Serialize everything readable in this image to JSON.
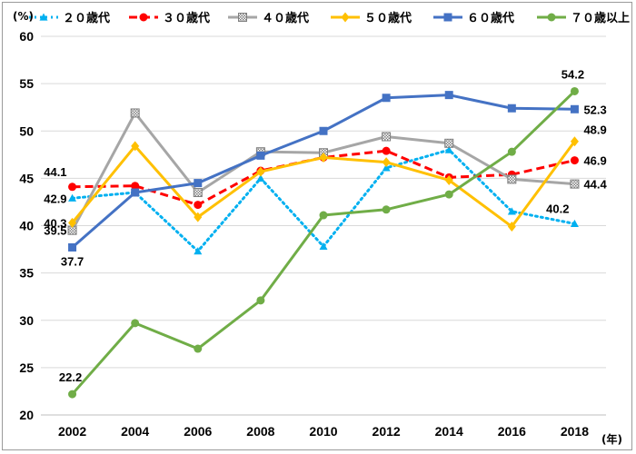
{
  "chart_data": {
    "type": "line",
    "title": "",
    "ylabel_unit": "(%)",
    "xlabel_unit": "(年)",
    "x": [
      "2002",
      "2004",
      "2006",
      "2008",
      "2010",
      "2012",
      "2014",
      "2016",
      "2018"
    ],
    "ylim": [
      20,
      60
    ],
    "yticks": [
      "20",
      "25",
      "30",
      "35",
      "40",
      "45",
      "50",
      "55",
      "60"
    ],
    "grid": "horizontal",
    "legend": "top",
    "series": [
      {
        "name": "２０歳代",
        "color": "#00b0f0",
        "line": "dotted",
        "marker": "triangle",
        "values": [
          42.9,
          43.5,
          37.3,
          45.0,
          37.8,
          46.1,
          48.0,
          41.5,
          40.2
        ]
      },
      {
        "name": "３０歳代",
        "color": "#ff0000",
        "line": "dashed",
        "marker": "circle",
        "values": [
          44.1,
          44.2,
          42.2,
          45.8,
          47.2,
          47.9,
          45.1,
          45.4,
          46.9
        ]
      },
      {
        "name": "４０歳代",
        "color": "#a6a6a6",
        "line": "solid",
        "marker": "checkered-square",
        "values": [
          39.5,
          51.9,
          43.5,
          47.8,
          47.7,
          49.4,
          48.7,
          44.9,
          44.4
        ]
      },
      {
        "name": "５０歳代",
        "color": "#ffc000",
        "line": "solid",
        "marker": "diamond",
        "values": [
          40.3,
          48.4,
          40.9,
          45.7,
          47.2,
          46.7,
          44.8,
          39.9,
          48.9
        ]
      },
      {
        "name": "６０歳代",
        "color": "#4472c4",
        "line": "solid",
        "marker": "square",
        "values": [
          37.7,
          43.5,
          44.5,
          47.4,
          50.0,
          53.5,
          53.8,
          52.4,
          52.3
        ]
      },
      {
        "name": "７０歳以上",
        "color": "#70ad47",
        "line": "solid",
        "marker": "circle",
        "values": [
          22.2,
          29.7,
          27.0,
          32.1,
          41.1,
          41.7,
          43.3,
          47.8,
          54.2
        ]
      }
    ],
    "data_labels": [
      {
        "text": "44.1",
        "series": 1,
        "index": 0,
        "pos": "upper-left"
      },
      {
        "text": "42.9",
        "series": 0,
        "index": 0,
        "pos": "left"
      },
      {
        "text": "40.3",
        "series": 3,
        "index": 0,
        "pos": "left"
      },
      {
        "text": "39.5",
        "series": 2,
        "index": 0,
        "pos": "left"
      },
      {
        "text": "37.7",
        "series": 4,
        "index": 0,
        "pos": "below"
      },
      {
        "text": "22.2",
        "series": 5,
        "index": 0,
        "pos": "above"
      },
      {
        "text": "54.2",
        "series": 5,
        "index": 8,
        "pos": "above"
      },
      {
        "text": "52.3",
        "series": 4,
        "index": 8,
        "pos": "right"
      },
      {
        "text": "48.9",
        "series": 3,
        "index": 8,
        "pos": "upper-right"
      },
      {
        "text": "46.9",
        "series": 1,
        "index": 8,
        "pos": "right"
      },
      {
        "text": "44.4",
        "series": 2,
        "index": 8,
        "pos": "right"
      },
      {
        "text": "40.2",
        "series": 0,
        "index": 8,
        "pos": "upper-left"
      }
    ]
  }
}
